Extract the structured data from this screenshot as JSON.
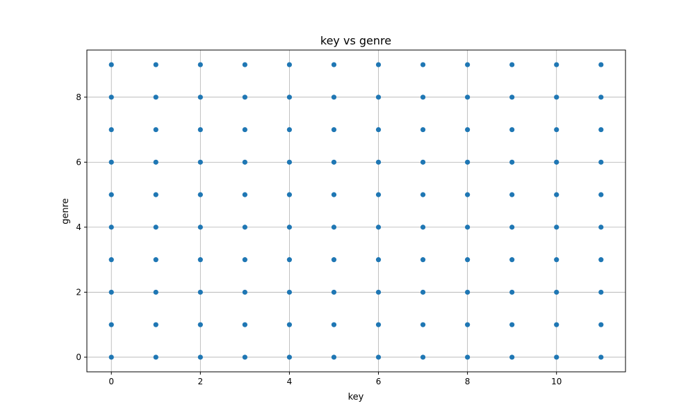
{
  "chart_data": {
    "type": "scatter",
    "title": "key vs genre",
    "xlabel": "key",
    "ylabel": "genre",
    "xlim": [
      -0.55,
      11.55
    ],
    "ylim": [
      -0.45,
      9.45
    ],
    "xticks": [
      0,
      2,
      4,
      6,
      8,
      10
    ],
    "yticks": [
      0,
      2,
      4,
      6,
      8
    ],
    "grid": true,
    "marker_color": "#1f77b4",
    "series": [
      {
        "x": [
          0,
          0,
          0,
          0,
          0,
          0,
          0,
          0,
          0,
          0,
          1,
          1,
          1,
          1,
          1,
          1,
          1,
          1,
          1,
          1,
          2,
          2,
          2,
          2,
          2,
          2,
          2,
          2,
          2,
          2,
          3,
          3,
          3,
          3,
          3,
          3,
          3,
          3,
          3,
          3,
          4,
          4,
          4,
          4,
          4,
          4,
          4,
          4,
          4,
          4,
          5,
          5,
          5,
          5,
          5,
          5,
          5,
          5,
          5,
          5,
          6,
          6,
          6,
          6,
          6,
          6,
          6,
          6,
          6,
          6,
          7,
          7,
          7,
          7,
          7,
          7,
          7,
          7,
          7,
          7,
          8,
          8,
          8,
          8,
          8,
          8,
          8,
          8,
          8,
          8,
          9,
          9,
          9,
          9,
          9,
          9,
          9,
          9,
          9,
          9,
          10,
          10,
          10,
          10,
          10,
          10,
          10,
          10,
          10,
          10,
          11,
          11,
          11,
          11,
          11,
          11,
          11,
          11,
          11,
          11
        ],
        "y": [
          0,
          1,
          2,
          3,
          4,
          5,
          6,
          7,
          8,
          9,
          0,
          1,
          2,
          3,
          4,
          5,
          6,
          7,
          8,
          9,
          0,
          1,
          2,
          3,
          4,
          5,
          6,
          7,
          8,
          9,
          0,
          1,
          2,
          3,
          4,
          5,
          6,
          7,
          8,
          9,
          0,
          1,
          2,
          3,
          4,
          5,
          6,
          7,
          8,
          9,
          0,
          1,
          2,
          3,
          4,
          5,
          6,
          7,
          8,
          9,
          0,
          1,
          2,
          3,
          4,
          5,
          6,
          7,
          8,
          9,
          0,
          1,
          2,
          3,
          4,
          5,
          6,
          7,
          8,
          9,
          0,
          1,
          2,
          3,
          4,
          5,
          6,
          7,
          8,
          9,
          0,
          1,
          2,
          3,
          4,
          5,
          6,
          7,
          8,
          9,
          0,
          1,
          2,
          3,
          4,
          5,
          6,
          7,
          8,
          9,
          0,
          1,
          2,
          3,
          4,
          5,
          6,
          7,
          8,
          9
        ]
      }
    ]
  }
}
